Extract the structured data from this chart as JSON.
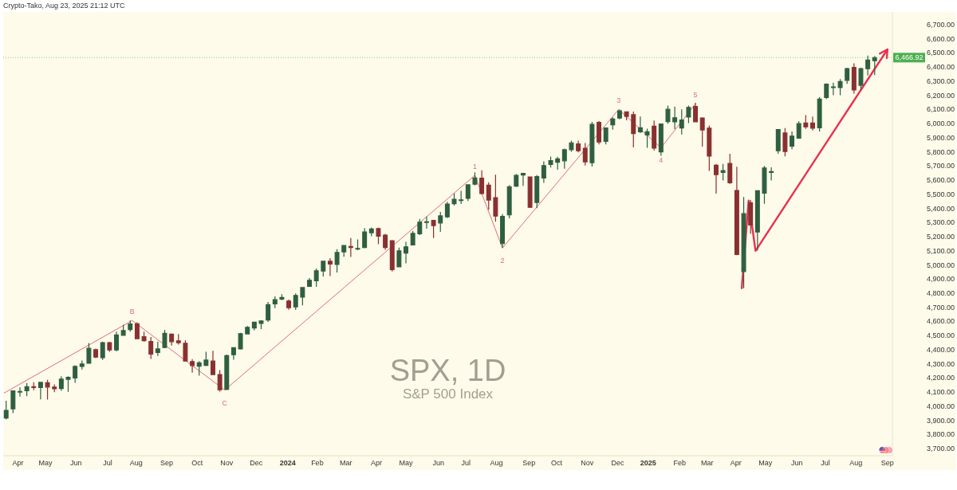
{
  "chart_data": {
    "type": "candlestick",
    "title": "SPX, 1D",
    "subtitle": "S&P 500 Index",
    "annotations": [
      "Crypto-Tako, Aug 23, 2025 21:12 UTC",
      {
        "text": "B",
        "x": "2023-07-28",
        "y": 4607
      },
      {
        "text": "C",
        "x": "2023-10-30",
        "y": 4115
      },
      {
        "text": "1",
        "x": "2024-07-10",
        "y": 5634
      },
      {
        "text": "2",
        "x": "2024-08-07",
        "y": 5120
      },
      {
        "text": "3",
        "x": "2024-12-03",
        "y": 6100
      },
      {
        "text": "4",
        "x": "2025-01-15",
        "y": 5829
      },
      {
        "text": "5",
        "x": "2025-02-19",
        "y": 6140
      }
    ],
    "x": [
      "2023-03-22",
      "2023-03-29",
      "2023-04-05",
      "2023-04-12",
      "2023-04-19",
      "2023-04-26",
      "2023-05-03",
      "2023-05-10",
      "2023-05-17",
      "2023-05-24",
      "2023-05-31",
      "2023-06-07",
      "2023-06-14",
      "2023-06-21",
      "2023-06-28",
      "2023-07-05",
      "2023-07-12",
      "2023-07-19",
      "2023-07-26",
      "2023-08-02",
      "2023-08-09",
      "2023-08-16",
      "2023-08-23",
      "2023-08-30",
      "2023-09-06",
      "2023-09-13",
      "2023-09-20",
      "2023-09-27",
      "2023-10-04",
      "2023-10-11",
      "2023-10-18",
      "2023-10-25",
      "2023-11-01",
      "2023-11-08",
      "2023-11-15",
      "2023-11-22",
      "2023-11-29",
      "2023-12-06",
      "2023-12-13",
      "2023-12-20",
      "2023-12-27",
      "2024-01-03",
      "2024-01-10",
      "2024-01-17",
      "2024-01-24",
      "2024-01-31",
      "2024-02-07",
      "2024-02-14",
      "2024-02-21",
      "2024-02-28",
      "2024-03-06",
      "2024-03-13",
      "2024-03-20",
      "2024-03-27",
      "2024-04-03",
      "2024-04-10",
      "2024-04-17",
      "2024-04-24",
      "2024-05-01",
      "2024-05-08",
      "2024-05-15",
      "2024-05-22",
      "2024-05-29",
      "2024-06-05",
      "2024-06-12",
      "2024-06-19",
      "2024-06-26",
      "2024-07-03",
      "2024-07-10",
      "2024-07-17",
      "2024-07-24",
      "2024-07-31",
      "2024-08-07",
      "2024-08-14",
      "2024-08-21",
      "2024-08-28",
      "2024-09-04",
      "2024-09-11",
      "2024-09-18",
      "2024-09-25",
      "2024-10-02",
      "2024-10-09",
      "2024-10-16",
      "2024-10-23",
      "2024-10-30",
      "2024-11-06",
      "2024-11-13",
      "2024-11-20",
      "2024-11-27",
      "2024-12-04",
      "2024-12-11",
      "2024-12-18",
      "2024-12-25",
      "2025-01-01",
      "2025-01-08",
      "2025-01-15",
      "2025-01-22",
      "2025-01-29",
      "2025-02-05",
      "2025-02-12",
      "2025-02-19",
      "2025-02-26",
      "2025-03-05",
      "2025-03-12",
      "2025-03-19",
      "2025-03-26",
      "2025-04-02",
      "2025-04-09",
      "2025-04-16",
      "2025-04-23",
      "2025-04-30",
      "2025-05-07",
      "2025-05-14",
      "2025-05-21",
      "2025-05-28",
      "2025-06-04",
      "2025-06-11",
      "2025-06-18",
      "2025-06-25",
      "2025-07-02",
      "2025-07-09",
      "2025-07-16",
      "2025-07-23",
      "2025-07-30",
      "2025-08-06",
      "2025-08-13",
      "2025-08-20"
    ],
    "ohlc": [
      [
        3917,
        4039,
        3906,
        3971
      ],
      [
        3982,
        4110,
        3951,
        4109
      ],
      [
        4102,
        4133,
        4069,
        4105
      ],
      [
        4110,
        4164,
        4072,
        4138
      ],
      [
        4139,
        4170,
        4114,
        4133
      ],
      [
        4132,
        4171,
        4049,
        4169
      ],
      [
        4166,
        4187,
        4048,
        4136
      ],
      [
        4136,
        4155,
        4099,
        4124
      ],
      [
        4126,
        4212,
        4110,
        4192
      ],
      [
        4191,
        4213,
        4103,
        4205
      ],
      [
        4200,
        4290,
        4166,
        4282
      ],
      [
        4282,
        4323,
        4260,
        4299
      ],
      [
        4304,
        4448,
        4302,
        4410
      ],
      [
        4400,
        4408,
        4341,
        4348
      ],
      [
        4344,
        4458,
        4328,
        4450
      ],
      [
        4450,
        4456,
        4385,
        4399
      ],
      [
        4399,
        4528,
        4389,
        4505
      ],
      [
        4502,
        4578,
        4498,
        4536
      ],
      [
        4543,
        4607,
        4528,
        4582
      ],
      [
        4584,
        4594,
        4474,
        4478
      ],
      [
        4492,
        4528,
        4458,
        4464
      ],
      [
        4459,
        4490,
        4335,
        4370
      ],
      [
        4380,
        4458,
        4356,
        4406
      ],
      [
        4416,
        4541,
        4411,
        4516
      ],
      [
        4510,
        4515,
        4430,
        4457
      ],
      [
        4463,
        4511,
        4437,
        4450
      ],
      [
        4446,
        4467,
        4316,
        4320
      ],
      [
        4316,
        4334,
        4238,
        4288
      ],
      [
        4284,
        4319,
        4216,
        4308
      ],
      [
        4289,
        4385,
        4284,
        4327
      ],
      [
        4320,
        4393,
        4223,
        4224
      ],
      [
        4225,
        4256,
        4104,
        4117
      ],
      [
        4120,
        4366,
        4113,
        4358
      ],
      [
        4365,
        4415,
        4329,
        4415
      ],
      [
        4406,
        4520,
        4401,
        4514
      ],
      [
        4512,
        4568,
        4511,
        4559
      ],
      [
        4554,
        4597,
        4537,
        4595
      ],
      [
        4586,
        4609,
        4546,
        4604
      ],
      [
        4610,
        4738,
        4597,
        4719
      ],
      [
        4725,
        4778,
        4695,
        4755
      ],
      [
        4759,
        4793,
        4751,
        4770
      ],
      [
        4745,
        4755,
        4683,
        4697
      ],
      [
        4703,
        4798,
        4682,
        4784
      ],
      [
        4772,
        4842,
        4714,
        4840
      ],
      [
        4848,
        4907,
        4845,
        4891
      ],
      [
        4888,
        4975,
        4845,
        4959
      ],
      [
        4957,
        5030,
        4918,
        5027
      ],
      [
        5026,
        5048,
        4921,
        5006
      ],
      [
        5003,
        5111,
        4946,
        5089
      ],
      [
        5093,
        5141,
        5058,
        5137
      ],
      [
        5131,
        5190,
        5057,
        5124
      ],
      [
        5112,
        5180,
        5104,
        5117
      ],
      [
        5123,
        5261,
        5118,
        5234
      ],
      [
        5228,
        5265,
        5203,
        5254
      ],
      [
        5257,
        5264,
        5147,
        5204
      ],
      [
        5211,
        5220,
        5107,
        5123
      ],
      [
        5171,
        5176,
        4954,
        4967
      ],
      [
        4987,
        5123,
        4987,
        5100
      ],
      [
        5084,
        5164,
        5011,
        5128
      ],
      [
        5142,
        5240,
        5142,
        5223
      ],
      [
        5221,
        5325,
        5211,
        5303
      ],
      [
        5305,
        5342,
        5257,
        5305
      ],
      [
        5315,
        5315,
        5191,
        5278
      ],
      [
        5297,
        5375,
        5234,
        5347
      ],
      [
        5341,
        5447,
        5331,
        5431
      ],
      [
        5433,
        5506,
        5420,
        5465
      ],
      [
        5460,
        5524,
        5432,
        5460
      ],
      [
        5471,
        5570,
        5452,
        5567
      ],
      [
        5572,
        5655,
        5562,
        5615
      ],
      [
        5614,
        5669,
        5497,
        5505
      ],
      [
        5565,
        5585,
        5391,
        5459
      ],
      [
        5476,
        5639,
        5306,
        5346
      ],
      [
        5151,
        5359,
        5120,
        5344
      ],
      [
        5354,
        5564,
        5330,
        5554
      ],
      [
        5557,
        5643,
        5551,
        5634
      ],
      [
        5637,
        5651,
        5560,
        5648
      ],
      [
        5623,
        5626,
        5403,
        5408
      ],
      [
        5442,
        5636,
        5402,
        5626
      ],
      [
        5615,
        5733,
        5581,
        5703
      ],
      [
        5711,
        5767,
        5690,
        5738
      ],
      [
        5727,
        5765,
        5674,
        5751
      ],
      [
        5737,
        5823,
        5681,
        5815
      ],
      [
        5816,
        5879,
        5800,
        5864
      ],
      [
        5857,
        5879,
        5797,
        5808
      ],
      [
        5826,
        5863,
        5703,
        5729
      ],
      [
        5723,
        6012,
        5696,
        5995
      ],
      [
        6008,
        6018,
        5853,
        5870
      ],
      [
        5875,
        5973,
        5853,
        5969
      ],
      [
        5992,
        6044,
        5957,
        6032
      ],
      [
        6040,
        6100,
        6030,
        6090
      ],
      [
        6084,
        6085,
        6024,
        6051
      ],
      [
        6063,
        6085,
        5832,
        5930
      ],
      [
        5942,
        6050,
        5933,
        5970
      ],
      [
        5920,
        5964,
        5829,
        5942
      ],
      [
        5982,
        6022,
        5809,
        5827
      ],
      [
        5800,
        6000,
        5773,
        5997
      ],
      [
        6014,
        6128,
        6000,
        6101
      ],
      [
        6012,
        6120,
        5962,
        6041
      ],
      [
        5969,
        6101,
        5923,
        6026
      ],
      [
        6046,
        6127,
        6003,
        6115
      ],
      [
        6121,
        6147,
        6009,
        6013
      ],
      [
        6040,
        6044,
        5837,
        5955
      ],
      [
        5968,
        5986,
        5666,
        5770
      ],
      [
        5705,
        5715,
        5505,
        5639
      ],
      [
        5655,
        5715,
        5597,
        5667
      ],
      [
        5718,
        5787,
        5574,
        5581
      ],
      [
        5527,
        5695,
        5069,
        5074
      ],
      [
        4953,
        5481,
        4835,
        5363
      ],
      [
        5441,
        5460,
        5220,
        5283
      ],
      [
        5233,
        5529,
        5101,
        5525
      ],
      [
        5508,
        5700,
        5433,
        5686
      ],
      [
        5655,
        5691,
        5597,
        5660
      ],
      [
        5808,
        5959,
        5786,
        5958
      ],
      [
        5934,
        5968,
        5768,
        5802
      ],
      [
        5841,
        5944,
        5819,
        5912
      ],
      [
        5897,
        6016,
        5897,
        6000
      ],
      [
        6004,
        6060,
        5963,
        5977
      ],
      [
        6005,
        6050,
        5952,
        5968
      ],
      [
        5970,
        6188,
        5944,
        6173
      ],
      [
        6185,
        6284,
        6174,
        6279
      ],
      [
        6260,
        6290,
        6201,
        6260
      ],
      [
        6255,
        6315,
        6201,
        6297
      ],
      [
        6306,
        6395,
        6281,
        6389
      ],
      [
        6397,
        6427,
        6212,
        6238
      ],
      [
        6271,
        6396,
        6240,
        6389
      ],
      [
        6389,
        6481,
        6341,
        6450
      ],
      [
        6445,
        6478,
        6343,
        6466.92
      ]
    ],
    "series": [
      {
        "type": "line",
        "color": "#e36b78",
        "x": [
          "2023-03-20",
          "2023-07-28",
          "2023-10-30",
          "2024-07-10",
          "2024-08-07",
          "2024-12-03",
          "2025-01-15",
          "2025-02-19"
        ],
        "values": [
          4094,
          4607,
          4115,
          5634,
          5120,
          6100,
          5829,
          6140
        ]
      },
      {
        "type": "line",
        "color": "#e8304f",
        "x": [
          "2025-04-07",
          "2025-04-14",
          "2025-04-21",
          "2025-09-02"
        ],
        "values": [
          4835,
          5455,
          5100,
          6525
        ]
      }
    ],
    "xlim": [
      "2023-03-19",
      "2025-09-07"
    ],
    "xticks": [
      {
        "value": "2023-04-03",
        "label": "Apr"
      },
      {
        "value": "2023-05-01",
        "label": "May"
      },
      {
        "value": "2023-06-01",
        "label": "Jun"
      },
      {
        "value": "2023-07-03",
        "label": "Jul"
      },
      {
        "value": "2023-08-01",
        "label": "Aug"
      },
      {
        "value": "2023-09-01",
        "label": "Sep"
      },
      {
        "value": "2023-10-02",
        "label": "Oct"
      },
      {
        "value": "2023-11-01",
        "label": "Nov"
      },
      {
        "value": "2023-12-01",
        "label": "Dec"
      },
      {
        "value": "2024-01-02",
        "label": "2024"
      },
      {
        "value": "2024-02-01",
        "label": "Feb"
      },
      {
        "value": "2024-03-01",
        "label": "Mar"
      },
      {
        "value": "2024-04-01",
        "label": "Apr"
      },
      {
        "value": "2024-05-01",
        "label": "May"
      },
      {
        "value": "2024-06-03",
        "label": "Jun"
      },
      {
        "value": "2024-07-01",
        "label": "Jul"
      },
      {
        "value": "2024-08-01",
        "label": "Aug"
      },
      {
        "value": "2024-09-03",
        "label": "Sep"
      },
      {
        "value": "2024-10-01",
        "label": "Oct"
      },
      {
        "value": "2024-11-01",
        "label": "Nov"
      },
      {
        "value": "2024-12-02",
        "label": "Dec"
      },
      {
        "value": "2025-01-02",
        "label": "2025"
      },
      {
        "value": "2025-02-03",
        "label": "Feb"
      },
      {
        "value": "2025-03-03",
        "label": "Mar"
      },
      {
        "value": "2025-04-01",
        "label": "Apr"
      },
      {
        "value": "2025-05-01",
        "label": "May"
      },
      {
        "value": "2025-06-02",
        "label": "Jun"
      },
      {
        "value": "2025-07-01",
        "label": "Jul"
      },
      {
        "value": "2025-08-01",
        "label": "Aug"
      },
      {
        "value": "2025-09-02",
        "label": "Sep"
      }
    ],
    "ylim": [
      3650,
      6790
    ],
    "yticks": [
      {
        "value": 3700,
        "label": "3,700.00"
      },
      {
        "value": 3800,
        "label": "3,800.00"
      },
      {
        "value": 3900,
        "label": "3,900.00"
      },
      {
        "value": 4000,
        "label": "4,000.00"
      },
      {
        "value": 4100,
        "label": "4,100.00"
      },
      {
        "value": 4200,
        "label": "4,200.00"
      },
      {
        "value": 4300,
        "label": "4,300.00"
      },
      {
        "value": 4400,
        "label": "4,400.00"
      },
      {
        "value": 4500,
        "label": "4,500.00"
      },
      {
        "value": 4600,
        "label": "4,600.00"
      },
      {
        "value": 4700,
        "label": "4,700.00"
      },
      {
        "value": 4800,
        "label": "4,800.00"
      },
      {
        "value": 4900,
        "label": "4,900.00"
      },
      {
        "value": 5000,
        "label": "5,000.00"
      },
      {
        "value": 5100,
        "label": "5,100.00"
      },
      {
        "value": 5200,
        "label": "5,200.00"
      },
      {
        "value": 5300,
        "label": "5,300.00"
      },
      {
        "value": 5400,
        "label": "5,400.00"
      },
      {
        "value": 5500,
        "label": "5,500.00"
      },
      {
        "value": 5600,
        "label": "5,600.00"
      },
      {
        "value": 5700,
        "label": "5,700.00"
      },
      {
        "value": 5800,
        "label": "5,800.00"
      },
      {
        "value": 5900,
        "label": "5,900.00"
      },
      {
        "value": 6000,
        "label": "6,000.00"
      },
      {
        "value": 6100,
        "label": "6,100.00"
      },
      {
        "value": 6200,
        "label": "6,200.00"
      },
      {
        "value": 6300,
        "label": "6,300.00"
      },
      {
        "value": 6400,
        "label": "6,400.00"
      },
      {
        "value": 6500,
        "label": "6,500.00"
      },
      {
        "value": 6600,
        "label": "6,600.00"
      },
      {
        "value": 6700,
        "label": "6,700.00"
      }
    ],
    "ref_lines": [
      {
        "axis": "y",
        "value": 6466.92,
        "label": "6,466.92",
        "color": "#4caf50",
        "line_style": "dotted"
      }
    ]
  }
}
